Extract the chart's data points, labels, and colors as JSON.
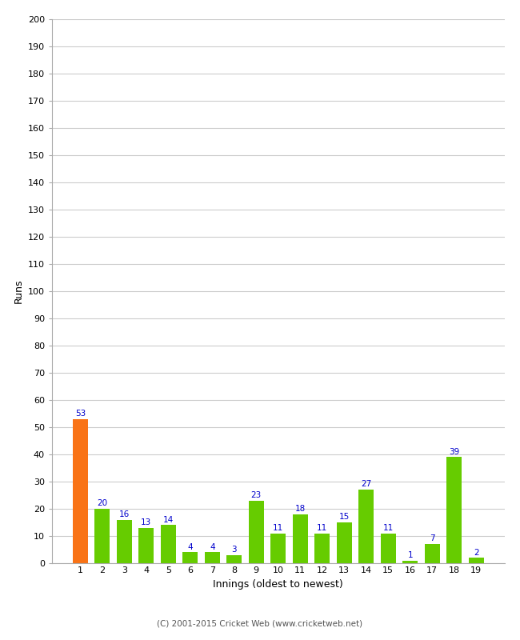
{
  "xlabel": "Innings (oldest to newest)",
  "ylabel": "Runs",
  "categories": [
    "1",
    "2",
    "3",
    "4",
    "5",
    "6",
    "7",
    "8",
    "9",
    "10",
    "11",
    "12",
    "13",
    "14",
    "15",
    "16",
    "17",
    "18",
    "19"
  ],
  "values": [
    53,
    20,
    16,
    13,
    14,
    4,
    4,
    3,
    23,
    11,
    18,
    11,
    15,
    27,
    11,
    1,
    7,
    39,
    2
  ],
  "bar_colors": [
    "#f97316",
    "#66cc00",
    "#66cc00",
    "#66cc00",
    "#66cc00",
    "#66cc00",
    "#66cc00",
    "#66cc00",
    "#66cc00",
    "#66cc00",
    "#66cc00",
    "#66cc00",
    "#66cc00",
    "#66cc00",
    "#66cc00",
    "#66cc00",
    "#66cc00",
    "#66cc00",
    "#66cc00"
  ],
  "ylim": [
    0,
    200
  ],
  "yticks": [
    0,
    10,
    20,
    30,
    40,
    50,
    60,
    70,
    80,
    90,
    100,
    110,
    120,
    130,
    140,
    150,
    160,
    170,
    180,
    190,
    200
  ],
  "background_color": "#ffffff",
  "grid_color": "#cccccc",
  "label_color": "#0000cc",
  "footer": "(C) 2001-2015 Cricket Web (www.cricketweb.net)"
}
